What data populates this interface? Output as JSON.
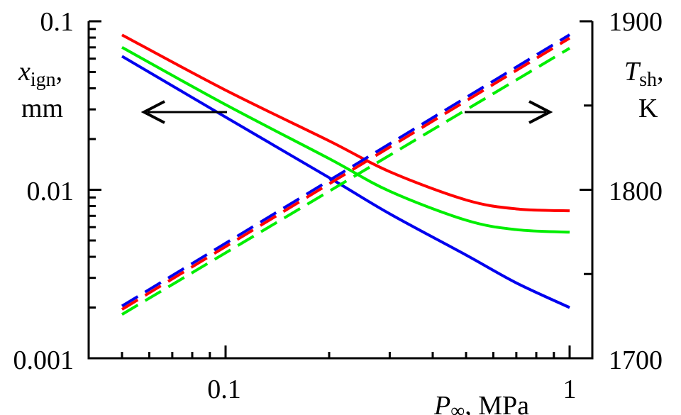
{
  "chart_data": {
    "type": "line",
    "x_axis": {
      "scale": "log",
      "range": [
        0.05,
        1
      ],
      "label_var": "P",
      "label_sub": "∞",
      "label_unit": ", MPa",
      "tick_labels": [
        {
          "value": 0.1,
          "label": "0.1"
        },
        {
          "value": 1,
          "label": "1"
        }
      ],
      "minor_ticks": [
        0.05,
        0.06,
        0.07,
        0.08,
        0.09,
        0.2,
        0.3,
        0.4,
        0.5,
        0.6,
        0.7,
        0.8,
        0.9
      ]
    },
    "y_left": {
      "scale": "log",
      "range": [
        0.001,
        0.1
      ],
      "label_var": "x",
      "label_sub": "ign",
      "label_comma": ",",
      "label_unit": "mm",
      "tick_labels": [
        {
          "value": 0.1,
          "label": "0.1"
        },
        {
          "value": 0.01,
          "label": "0.01"
        },
        {
          "value": 0.001,
          "label": "0.001"
        }
      ],
      "minor_ticks": [
        0.002,
        0.003,
        0.004,
        0.005,
        0.006,
        0.007,
        0.008,
        0.009,
        0.02,
        0.03,
        0.04,
        0.05,
        0.06,
        0.07,
        0.08,
        0.09
      ]
    },
    "y_right": {
      "scale": "linear",
      "range": [
        1700,
        1900
      ],
      "label_var": "T",
      "label_sub": "sh",
      "label_comma": ",",
      "label_unit": "K",
      "tick_labels": [
        {
          "value": 1900,
          "label": "1900"
        },
        {
          "value": 1800,
          "label": "1800"
        },
        {
          "value": 1700,
          "label": "1700"
        }
      ],
      "minor_ticks": [
        1750,
        1850
      ]
    },
    "series": [
      {
        "axis": "left",
        "color": "#ff0000",
        "dash": "solid",
        "x": [
          0.05,
          0.1,
          0.2,
          0.3,
          0.5,
          0.7,
          1.0
        ],
        "y": [
          0.083,
          0.039,
          0.0195,
          0.0128,
          0.0087,
          0.0077,
          0.0075
        ]
      },
      {
        "axis": "left",
        "color": "#00ee00",
        "dash": "solid",
        "x": [
          0.05,
          0.1,
          0.2,
          0.3,
          0.5,
          0.7,
          1.0
        ],
        "y": [
          0.07,
          0.032,
          0.0153,
          0.0098,
          0.0066,
          0.0058,
          0.0056
        ]
      },
      {
        "axis": "left",
        "color": "#0000ee",
        "dash": "solid",
        "x": [
          0.05,
          0.1,
          0.2,
          0.3,
          0.5,
          0.7,
          1.0
        ],
        "y": [
          0.062,
          0.027,
          0.0118,
          0.0072,
          0.0041,
          0.0028,
          0.002
        ]
      },
      {
        "axis": "right",
        "color": "#0000ee",
        "dash": "dashed",
        "x": [
          0.05,
          1.0
        ],
        "y": [
          1731,
          1892
        ]
      },
      {
        "axis": "right",
        "color": "#ff0000",
        "dash": "dashed",
        "x": [
          0.05,
          1.0
        ],
        "y": [
          1729,
          1890
        ]
      },
      {
        "axis": "right",
        "color": "#00ee00",
        "dash": "dashed",
        "x": [
          0.05,
          1.0
        ],
        "y": [
          1726,
          1884
        ]
      }
    ],
    "annotations": [
      {
        "type": "arrow",
        "direction": "left",
        "meaning": "solid curves refer to left axis"
      },
      {
        "type": "arrow",
        "direction": "right",
        "meaning": "dashed curves refer to right axis"
      }
    ],
    "grid": false,
    "legend": "none"
  }
}
